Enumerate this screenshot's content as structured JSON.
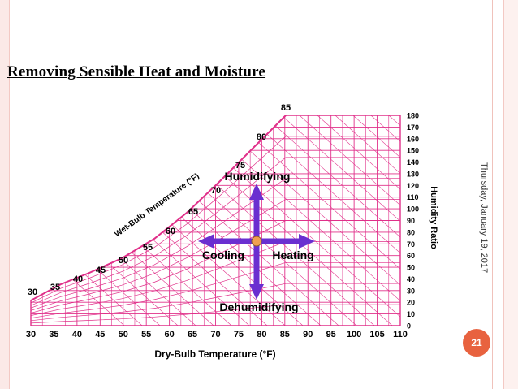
{
  "slide": {
    "title": "Removing Sensible Heat and Moisture",
    "date": "Thursday, January 19, 2017",
    "page_number": "21"
  },
  "chart": {
    "x_axis_label": "Dry-Bulb Temperature (°F)",
    "x_ticks": [
      "30",
      "35",
      "40",
      "45",
      "50",
      "55",
      "60",
      "65",
      "70",
      "75",
      "80",
      "85",
      "90",
      "95",
      "100",
      "105",
      "110"
    ],
    "y_axis_label": "Humidity Ratio",
    "y_ticks": [
      "180",
      "170",
      "160",
      "150",
      "140",
      "130",
      "120",
      "110",
      "100",
      "90",
      "80",
      "70",
      "60",
      "50",
      "40",
      "30",
      "20",
      "10",
      "0"
    ],
    "wet_bulb_label": "Wet-Bulb Temperature (°F)",
    "wet_bulb_ticks": [
      "30",
      "35",
      "40",
      "45",
      "50",
      "55",
      "60",
      "65",
      "70",
      "75",
      "80",
      "85"
    ],
    "process_labels": {
      "up": "Humidifying",
      "down": "Dehumidifying",
      "left": "Cooling",
      "right": "Heating"
    },
    "colors": {
      "grid": "#e0308a",
      "arrow": "#6a2fd0",
      "dot": "#f0a050"
    }
  }
}
